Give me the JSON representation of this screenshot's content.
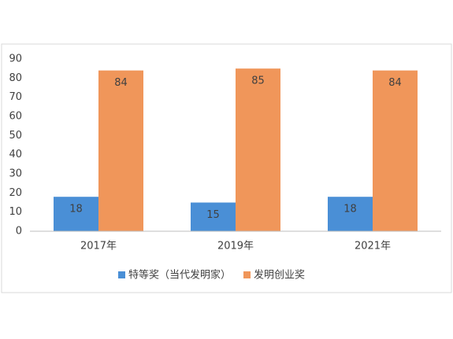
{
  "chart_data": {
    "type": "bar",
    "categories": [
      "2017年",
      "2019年",
      "2021年"
    ],
    "series": [
      {
        "name": "特等奖（当代发明家）",
        "color": "#4a8fd6",
        "values": [
          18,
          15,
          18
        ]
      },
      {
        "name": "发明创业奖",
        "color": "#f0965a",
        "values": [
          84,
          85,
          84
        ]
      }
    ],
    "ylim": [
      0,
      90
    ],
    "yticks": [
      0,
      10,
      20,
      30,
      40,
      50,
      60,
      70,
      80,
      90
    ],
    "grid": false,
    "legend": "bottom"
  }
}
